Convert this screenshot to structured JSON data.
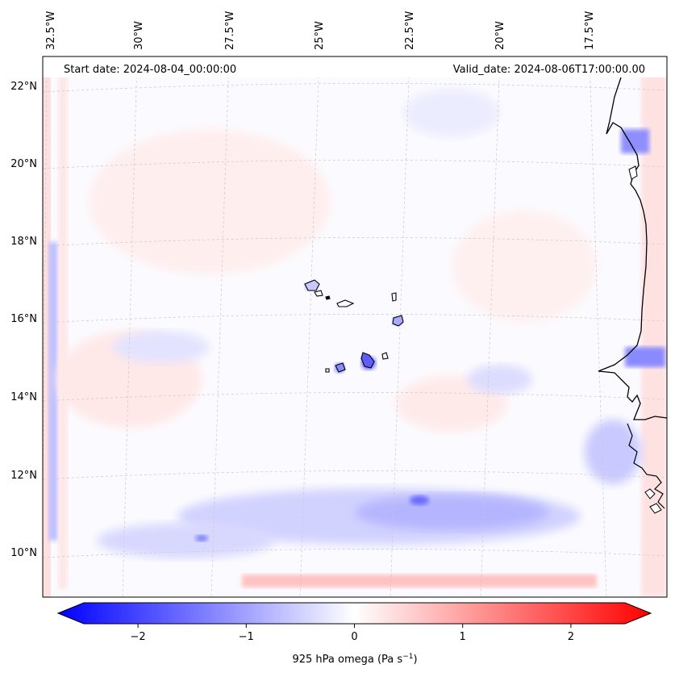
{
  "map": {
    "start_date": "Start date: 2024-08-04_00:00:00",
    "valid_date": "Valid_date: 2024-08-06T17:00:00.00",
    "longitude_labels": [
      "32.5°W",
      "30°W",
      "27.5°W",
      "25°W",
      "22.5°W",
      "20°W",
      "17.5°W"
    ],
    "latitude_labels": [
      "22°N",
      "20°N",
      "18°N",
      "16°N",
      "14°N",
      "12°N",
      "10°N"
    ],
    "variable": "925 hPa omega",
    "units": "Pa s",
    "units_exponent": "−1"
  },
  "colorbar": {
    "ticks": [
      "−2",
      "−1",
      "0",
      "1",
      "2"
    ],
    "tick_values": [
      -2,
      -1,
      0,
      1,
      2
    ],
    "range": [
      -2.6,
      2.6
    ],
    "colormap": "bwr",
    "color_low": "#0000ff",
    "color_mid": "#ffffff",
    "color_high": "#ff0000"
  },
  "colors": {
    "coastline": "#000000",
    "grid": "#c8c8c8",
    "background": "#ffffff"
  }
}
